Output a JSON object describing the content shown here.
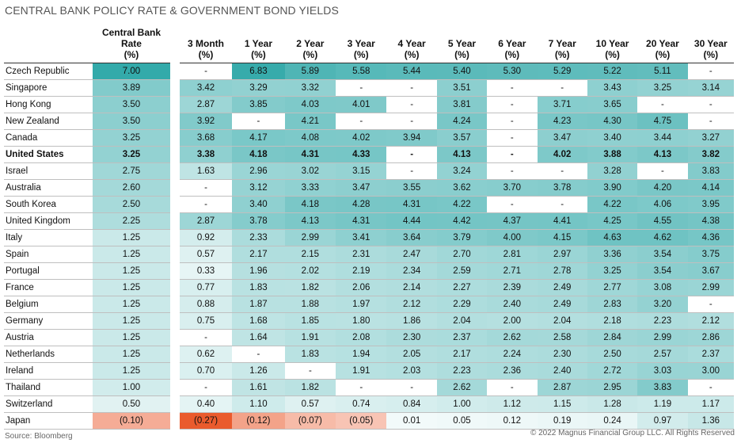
{
  "title": "CENTRAL BANK POLICY RATE & GOVERNMENT BOND YIELDS",
  "source": "Source: Bloomberg",
  "copyright": "© 2022 Magnus Financial Group LLC. All Rights Reserved",
  "colors": {
    "positive_max": "#2fa8a8",
    "positive_min": "#ffffff",
    "negative_max": "#ea5b2d",
    "negative_min": "#fbdcd3"
  },
  "chart_data": {
    "type": "table",
    "columns": [
      {
        "line1": "Central Bank",
        "line2": "Rate",
        "line3": "(%)"
      },
      {
        "line1": "",
        "line2": "3 Month",
        "line3": "(%)"
      },
      {
        "line1": "",
        "line2": "1 Year",
        "line3": "(%)"
      },
      {
        "line1": "",
        "line2": "2 Year",
        "line3": "(%)"
      },
      {
        "line1": "",
        "line2": "3 Year",
        "line3": "(%)"
      },
      {
        "line1": "",
        "line2": "4 Year",
        "line3": "(%)"
      },
      {
        "line1": "",
        "line2": "5 Year",
        "line3": "(%)"
      },
      {
        "line1": "",
        "line2": "6 Year",
        "line3": "(%)"
      },
      {
        "line1": "",
        "line2": "7 Year",
        "line3": "(%)"
      },
      {
        "line1": "",
        "line2": "10 Year",
        "line3": "(%)"
      },
      {
        "line1": "",
        "line2": "20 Year",
        "line3": "(%)"
      },
      {
        "line1": "",
        "line2": "30 Year",
        "line3": "(%)"
      }
    ],
    "rows": [
      {
        "country": "Czech Republic",
        "values": [
          "7.00",
          "-",
          "6.83",
          "5.89",
          "5.58",
          "5.44",
          "5.40",
          "5.30",
          "5.29",
          "5.22",
          "5.11",
          "-"
        ]
      },
      {
        "country": "Singapore",
        "values": [
          "3.89",
          "3.42",
          "3.29",
          "3.32",
          "-",
          "-",
          "3.51",
          "-",
          "-",
          "3.43",
          "3.25",
          "3.14"
        ]
      },
      {
        "country": "Hong Kong",
        "values": [
          "3.50",
          "2.87",
          "3.85",
          "4.03",
          "4.01",
          "-",
          "3.81",
          "-",
          "3.71",
          "3.65",
          "-",
          "-"
        ]
      },
      {
        "country": "New Zealand",
        "values": [
          "3.50",
          "3.92",
          "-",
          "4.21",
          "-",
          "-",
          "4.24",
          "-",
          "4.23",
          "4.30",
          "4.75",
          "-"
        ]
      },
      {
        "country": "Canada",
        "values": [
          "3.25",
          "3.68",
          "4.17",
          "4.08",
          "4.02",
          "3.94",
          "3.57",
          "-",
          "3.47",
          "3.40",
          "3.44",
          "3.27"
        ]
      },
      {
        "country": "United States",
        "bold": true,
        "values": [
          "3.25",
          "3.38",
          "4.18",
          "4.31",
          "4.33",
          "-",
          "4.13",
          "-",
          "4.02",
          "3.88",
          "4.13",
          "3.82"
        ]
      },
      {
        "country": "Israel",
        "values": [
          "2.75",
          "1.63",
          "2.96",
          "3.02",
          "3.15",
          "-",
          "3.24",
          "-",
          "-",
          "3.28",
          "-",
          "3.83"
        ]
      },
      {
        "country": "Australia",
        "values": [
          "2.60",
          "-",
          "3.12",
          "3.33",
          "3.47",
          "3.55",
          "3.62",
          "3.70",
          "3.78",
          "3.90",
          "4.20",
          "4.14"
        ]
      },
      {
        "country": "South Korea",
        "values": [
          "2.50",
          "-",
          "3.40",
          "4.18",
          "4.28",
          "4.31",
          "4.22",
          "-",
          "-",
          "4.22",
          "4.06",
          "3.95"
        ]
      },
      {
        "country": "United Kingdom",
        "values": [
          "2.25",
          "2.87",
          "3.78",
          "4.13",
          "4.31",
          "4.44",
          "4.42",
          "4.37",
          "4.41",
          "4.25",
          "4.55",
          "4.38"
        ]
      },
      {
        "country": "Italy",
        "values": [
          "1.25",
          "0.92",
          "2.33",
          "2.99",
          "3.41",
          "3.64",
          "3.79",
          "4.00",
          "4.15",
          "4.63",
          "4.62",
          "4.36"
        ]
      },
      {
        "country": "Spain",
        "values": [
          "1.25",
          "0.57",
          "2.17",
          "2.15",
          "2.31",
          "2.47",
          "2.70",
          "2.81",
          "2.97",
          "3.36",
          "3.54",
          "3.75"
        ]
      },
      {
        "country": "Portugal",
        "values": [
          "1.25",
          "0.33",
          "1.96",
          "2.02",
          "2.19",
          "2.34",
          "2.59",
          "2.71",
          "2.78",
          "3.25",
          "3.54",
          "3.67"
        ]
      },
      {
        "country": "France",
        "values": [
          "1.25",
          "0.77",
          "1.83",
          "1.82",
          "2.06",
          "2.14",
          "2.27",
          "2.39",
          "2.49",
          "2.77",
          "3.08",
          "2.99"
        ]
      },
      {
        "country": "Belgium",
        "values": [
          "1.25",
          "0.88",
          "1.87",
          "1.88",
          "1.97",
          "2.12",
          "2.29",
          "2.40",
          "2.49",
          "2.83",
          "3.20",
          "-"
        ]
      },
      {
        "country": "Germany",
        "values": [
          "1.25",
          "0.75",
          "1.68",
          "1.85",
          "1.80",
          "1.86",
          "2.04",
          "2.00",
          "2.04",
          "2.18",
          "2.23",
          "2.12"
        ]
      },
      {
        "country": "Austria",
        "values": [
          "1.25",
          "-",
          "1.64",
          "1.91",
          "2.08",
          "2.30",
          "2.37",
          "2.62",
          "2.58",
          "2.84",
          "2.99",
          "2.86"
        ]
      },
      {
        "country": "Netherlands",
        "values": [
          "1.25",
          "0.62",
          "-",
          "1.83",
          "1.94",
          "2.05",
          "2.17",
          "2.24",
          "2.30",
          "2.50",
          "2.57",
          "2.37"
        ]
      },
      {
        "country": "Ireland",
        "values": [
          "1.25",
          "0.70",
          "1.26",
          "-",
          "1.91",
          "2.03",
          "2.23",
          "2.36",
          "2.40",
          "2.72",
          "3.03",
          "3.00"
        ]
      },
      {
        "country": "Thailand",
        "values": [
          "1.00",
          "-",
          "1.61",
          "1.82",
          "-",
          "-",
          "2.62",
          "-",
          "2.87",
          "2.95",
          "3.83",
          "-"
        ]
      },
      {
        "country": "Switzerland",
        "values": [
          "0.50",
          "0.40",
          "1.10",
          "0.57",
          "0.74",
          "0.84",
          "1.00",
          "1.12",
          "1.15",
          "1.28",
          "1.19",
          "1.17"
        ]
      },
      {
        "country": "Japan",
        "values": [
          "(0.10)",
          "(0.27)",
          "(0.12)",
          "(0.07)",
          "(0.05)",
          "0.01",
          "0.05",
          "0.12",
          "0.19",
          "0.24",
          "0.97",
          "1.36"
        ]
      }
    ]
  }
}
